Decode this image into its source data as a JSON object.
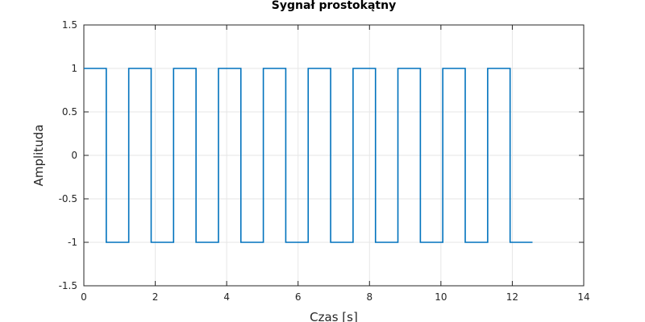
{
  "chart_data": {
    "type": "line",
    "title": "Sygnał prostokątny",
    "xlabel": "Czas [s]",
    "ylabel": "Amplituda",
    "xlim": [
      0,
      14
    ],
    "ylim": [
      -1.5,
      1.5
    ],
    "x_ticks": [
      "0",
      "2",
      "4",
      "6",
      "8",
      "10",
      "12",
      "14"
    ],
    "y_ticks": [
      "1.5",
      "1",
      "0.5",
      "0",
      "-0.5",
      "-1",
      "-1.5"
    ],
    "grid": true,
    "series": [
      {
        "color": "#0072bd",
        "x": [
          0,
          0.628,
          0.628,
          1.257,
          1.257,
          1.885,
          1.885,
          2.513,
          2.513,
          3.142,
          3.142,
          3.77,
          3.77,
          4.398,
          4.398,
          5.027,
          5.027,
          5.655,
          5.655,
          6.283,
          6.283,
          6.912,
          6.912,
          7.54,
          7.54,
          8.168,
          8.168,
          8.796,
          8.796,
          9.425,
          9.425,
          10.053,
          10.053,
          10.681,
          10.681,
          11.31,
          11.31,
          11.938,
          11.938,
          12.566
        ],
        "y": [
          1,
          1,
          -1,
          -1,
          1,
          1,
          -1,
          -1,
          1,
          1,
          -1,
          -1,
          1,
          1,
          -1,
          -1,
          1,
          1,
          -1,
          -1,
          1,
          1,
          -1,
          -1,
          1,
          1,
          -1,
          -1,
          1,
          1,
          -1,
          -1,
          1,
          1,
          -1,
          -1,
          1,
          1,
          -1,
          -1
        ]
      }
    ]
  }
}
